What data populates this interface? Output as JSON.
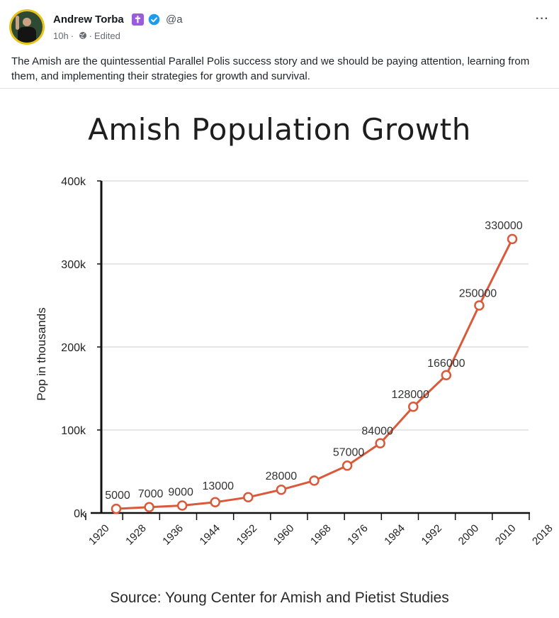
{
  "post": {
    "author_name": "Andrew Torba",
    "badge_glyph": "✝",
    "handle": "@a",
    "time": "10h",
    "separator": "·",
    "edited": "Edited",
    "more": "···",
    "text": "The Amish are the quintessential Parallel Polis success story and we should be paying attention, learning from them, and implementing their strategies for growth and survival.",
    "icons": [
      "avatar-photo",
      "cross-badge-icon",
      "verified-icon",
      "globe-icon",
      "more-options-icon"
    ],
    "colors": {
      "badge": "#9a5be0",
      "verified": "#1d9bf0",
      "avatar_ring": "#e7c219"
    }
  },
  "chart_data": {
    "type": "line",
    "title": "Amish Population Growth",
    "ylabel": "Pop in thousands",
    "xlabel": "",
    "source": "Source: Young Center for Amish and Pietist Studies",
    "x_tick_labels": [
      "1920",
      "1928",
      "1936",
      "1944",
      "1952",
      "1960",
      "1968",
      "1976",
      "1984",
      "1992",
      "2000",
      "2010",
      "2018"
    ],
    "y_tick_labels": [
      "0k",
      "100k",
      "200k",
      "300k",
      "400k"
    ],
    "y_ticks": [
      0,
      100000,
      200000,
      300000,
      400000
    ],
    "ylim": [
      0,
      400000
    ],
    "grid": true,
    "series": [
      {
        "color": "#d9593a",
        "points": [
          {
            "x": 1920,
            "y": 5000,
            "label": "5000"
          },
          {
            "x": 1928,
            "y": 7000,
            "label": "7000"
          },
          {
            "x": 1936,
            "y": 9000,
            "label": "9000"
          },
          {
            "x": 1944,
            "y": 13000,
            "label": "13000"
          },
          {
            "x": 1952,
            "y": 19000,
            "label": ""
          },
          {
            "x": 1960,
            "y": 28000,
            "label": "28000"
          },
          {
            "x": 1968,
            "y": 39000,
            "label": ""
          },
          {
            "x": 1976,
            "y": 57000,
            "label": "57000"
          },
          {
            "x": 1984,
            "y": 84000,
            "label": "84000"
          },
          {
            "x": 1992,
            "y": 128000,
            "label": "128000"
          },
          {
            "x": 2000,
            "y": 166000,
            "label": "166000"
          },
          {
            "x": 2010,
            "y": 250000,
            "label": "250000"
          },
          {
            "x": 2018,
            "y": 330000,
            "label": "330000"
          }
        ]
      }
    ]
  }
}
